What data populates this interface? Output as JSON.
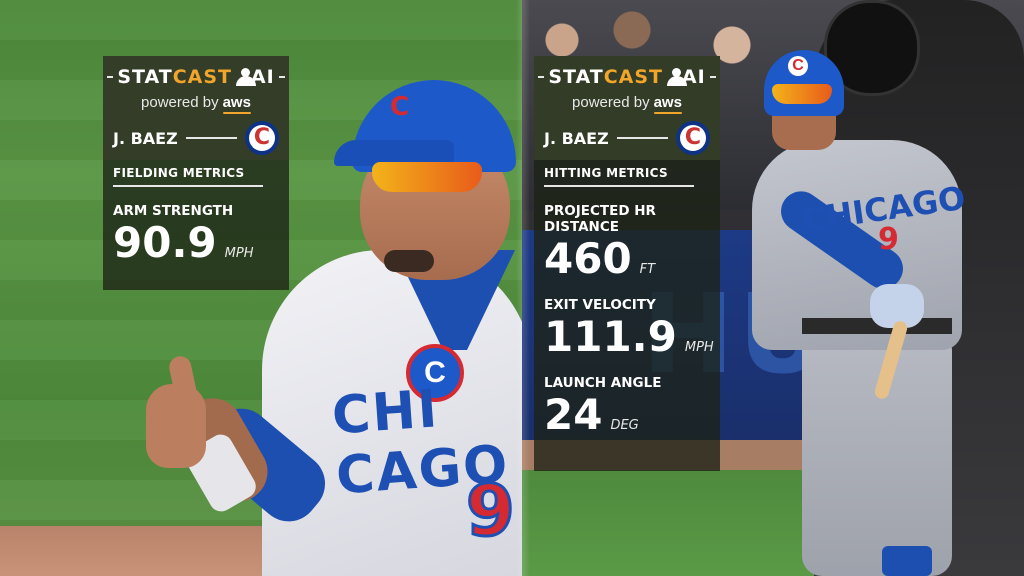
{
  "overlays": [
    {
      "brand": {
        "stat": "STAT",
        "cast": "CAST",
        "ai": "AI"
      },
      "powered_by": "powered by",
      "powered_brand": "aws",
      "player": "J. BAEZ",
      "team_logo_letter": "C",
      "section": "FIELDING METRICS",
      "metrics": [
        {
          "label": "ARM STRENGTH",
          "value": "90.9",
          "unit": "MPH"
        }
      ]
    },
    {
      "brand": {
        "stat": "STAT",
        "cast": "CAST",
        "ai": "AI"
      },
      "powered_by": "powered by",
      "powered_brand": "aws",
      "player": "J. BAEZ",
      "team_logo_letter": "C",
      "section": "HITTING METRICS",
      "metrics": [
        {
          "label": "PROJECTED HR DISTANCE",
          "value": "460",
          "unit": "FT"
        },
        {
          "label": "EXIT VELOCITY",
          "value": "111.9",
          "unit": "MPH"
        },
        {
          "label": "LAUNCH ANGLE",
          "value": "24",
          "unit": "DEG"
        }
      ]
    }
  ],
  "scene": {
    "left_jersey_text": "CHI CAGO",
    "left_jersey_number": "9",
    "right_jersey_text": "CHICAGO",
    "right_jersey_number": "9",
    "wall_text": "HUB",
    "cap_letter": "C"
  },
  "colors": {
    "cubs_blue": "#0e3386",
    "cubs_red": "#cc3433",
    "statcast_orange": "#f1a52a"
  }
}
